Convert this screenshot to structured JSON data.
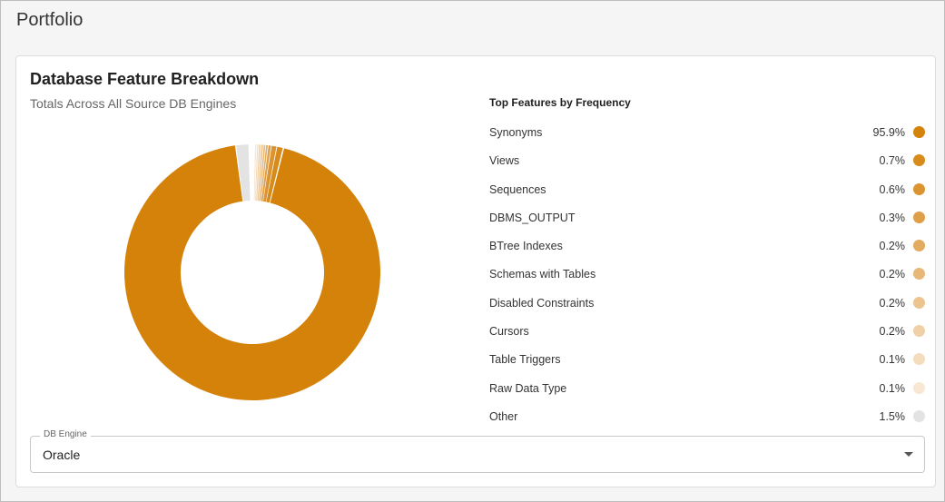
{
  "page": {
    "title": "Portfolio"
  },
  "card": {
    "title": "Database Feature Breakdown",
    "subtitle": "Totals Across All Source DB Engines"
  },
  "legend": {
    "title": "Top Features by Frequency"
  },
  "chart_data": {
    "type": "pie",
    "title": "Database Feature Breakdown",
    "subtitle": "Totals Across All Source DB Engines",
    "donut": true,
    "slices": [
      {
        "label": "Synonyms",
        "value": 95.9,
        "display": "95.9%",
        "color": "#d4820a"
      },
      {
        "label": "Views",
        "value": 0.7,
        "display": "0.7%",
        "color": "#d88a1a"
      },
      {
        "label": "Sequences",
        "value": 0.6,
        "display": "0.6%",
        "color": "#db9430"
      },
      {
        "label": "DBMS_OUTPUT",
        "value": 0.3,
        "display": "0.3%",
        "color": "#df9f48"
      },
      {
        "label": "BTree Indexes",
        "value": 0.2,
        "display": "0.2%",
        "color": "#e3ab60"
      },
      {
        "label": "Schemas with Tables",
        "value": 0.2,
        "display": "0.2%",
        "color": "#e8b878"
      },
      {
        "label": "Disabled Constraints",
        "value": 0.2,
        "display": "0.2%",
        "color": "#ecc48f"
      },
      {
        "label": "Cursors",
        "value": 0.2,
        "display": "0.2%",
        "color": "#f0d0a6"
      },
      {
        "label": "Table Triggers",
        "value": 0.1,
        "display": "0.1%",
        "color": "#f4dcbd"
      },
      {
        "label": "Raw Data Type",
        "value": 0.1,
        "display": "0.1%",
        "color": "#f8e7d2"
      },
      {
        "label": "Other",
        "value": 1.5,
        "display": "1.5%",
        "color": "#e3e3e3"
      }
    ],
    "legend_position": "right"
  },
  "db_engine": {
    "label": "DB Engine",
    "value": "Oracle"
  }
}
